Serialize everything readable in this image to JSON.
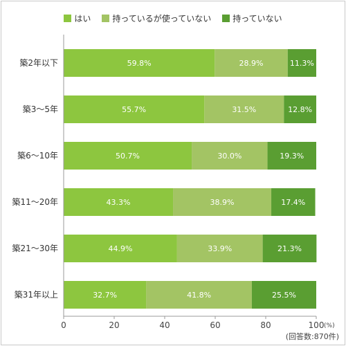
{
  "chart_data": {
    "type": "bar",
    "orientation": "horizontal",
    "stacked": true,
    "categories": [
      "築2年以下",
      "築3～5年",
      "築6～10年",
      "築11～20年",
      "築21～30年",
      "築31年以上"
    ],
    "series": [
      {
        "name": "はい",
        "values": [
          59.8,
          55.7,
          50.7,
          43.3,
          44.9,
          32.7
        ],
        "labels": [
          "59.8%",
          "55.7%",
          "50.7%",
          "43.3%",
          "44.9%",
          "32.7%"
        ],
        "color": "#8dc63f"
      },
      {
        "name": "持っているが使っていない",
        "values": [
          28.9,
          31.5,
          30.0,
          38.9,
          33.9,
          41.8
        ],
        "labels": [
          "28.9%",
          "31.5%",
          "30.0%",
          "38.9%",
          "33.9%",
          "41.8%"
        ],
        "color": "#a3c464"
      },
      {
        "name": "持っていない",
        "values": [
          11.3,
          12.8,
          19.3,
          17.4,
          21.3,
          25.5
        ],
        "labels": [
          "11.3%",
          "12.8%",
          "19.3%",
          "17.4%",
          "21.3%",
          "25.5%"
        ],
        "color": "#5a9e32"
      }
    ],
    "x_ticks": [
      "0",
      "20",
      "40",
      "60",
      "80",
      "100"
    ],
    "xlim": [
      0,
      100
    ],
    "x_unit": "(%)",
    "footnote": "(回答数:870件)",
    "legend_position": "top"
  }
}
